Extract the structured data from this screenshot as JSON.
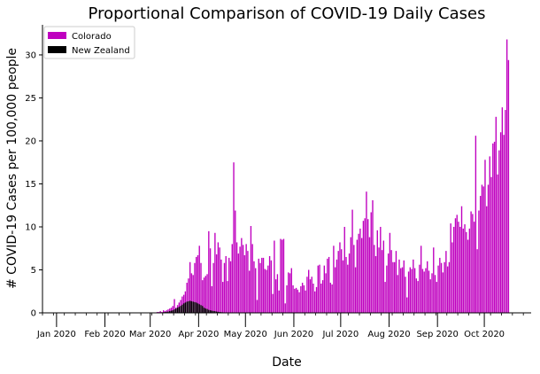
{
  "chart_data": {
    "type": "bar",
    "title": "Proportional Comparison of COVID-19 Daily Cases",
    "xlabel": "Date",
    "ylabel": "# COVID-19 Cases per 100,000 people",
    "x_range": [
      "2019-12-23",
      "2020-10-31"
    ],
    "ylim": [
      0,
      33.5
    ],
    "y_ticks": [
      0,
      5,
      10,
      15,
      20,
      25,
      30
    ],
    "x_ticks": [
      {
        "date": "2020-01-01",
        "label": "Jan 2020"
      },
      {
        "date": "2020-02-01",
        "label": "Feb 2020"
      },
      {
        "date": "2020-03-01",
        "label": "Mar 2020"
      },
      {
        "date": "2020-04-01",
        "label": "Apr 2020"
      },
      {
        "date": "2020-05-01",
        "label": "May 2020"
      },
      {
        "date": "2020-06-01",
        "label": "Jun 2020"
      },
      {
        "date": "2020-07-01",
        "label": "Jul 2020"
      },
      {
        "date": "2020-08-01",
        "label": "Aug 2020"
      },
      {
        "date": "2020-09-01",
        "label": "Sep 2020"
      },
      {
        "date": "2020-10-01",
        "label": "Oct 2020"
      }
    ],
    "grid": false,
    "legend_position": "top-left",
    "series": [
      {
        "name": "Colorado",
        "color": "#bf00bf",
        "start_date": "2020-03-05",
        "values": [
          0.1,
          0.1,
          0.2,
          0.1,
          0.3,
          0.2,
          0.3,
          0.4,
          0.5,
          0.6,
          0.8,
          1.6,
          0.6,
          0.9,
          1.2,
          1.5,
          1.9,
          2.1,
          2.5,
          3.5,
          4.0,
          5.9,
          4.6,
          4.4,
          5.8,
          6.5,
          6.7,
          7.8,
          5.8,
          3.8,
          4.1,
          4.3,
          4.5,
          9.5,
          7.5,
          3.1,
          5.8,
          9.3,
          6.8,
          8.2,
          7.6,
          6.2,
          3.6,
          5.8,
          6.6,
          3.7,
          6.4,
          6.0,
          8.0,
          17.5,
          11.9,
          8.2,
          6.9,
          7.7,
          8.7,
          7.9,
          6.7,
          8.0,
          7.2,
          4.9,
          10.1,
          8.0,
          6.0,
          5.2,
          1.5,
          6.3,
          5.8,
          6.4,
          6.4,
          5.1,
          5.0,
          5.5,
          6.6,
          6.1,
          2.2,
          8.4,
          3.9,
          4.5,
          2.6,
          8.6,
          8.5,
          8.6,
          1.1,
          3.2,
          4.7,
          4.6,
          5.2,
          3.2,
          2.8,
          2.9,
          2.7,
          2.4,
          3.1,
          3.5,
          3.2,
          2.6,
          4.2,
          5.0,
          3.9,
          4.2,
          3.4,
          2.5,
          3.0,
          5.5,
          5.6,
          3.4,
          3.8,
          5.5,
          4.6,
          6.3,
          6.5,
          3.5,
          3.3,
          7.8,
          5.3,
          6.2,
          7.2,
          8.2,
          7.4,
          6.1,
          10.0,
          6.5,
          5.6,
          6.9,
          8.8,
          12.0,
          7.9,
          5.3,
          8.5,
          9.2,
          9.8,
          8.7,
          10.7,
          11.0,
          14.1,
          10.9,
          8.8,
          11.7,
          13.1,
          7.9,
          6.6,
          9.6,
          7.6,
          10.0,
          7.3,
          8.4,
          3.6,
          5.5,
          6.9,
          9.3,
          7.3,
          5.9,
          5.9,
          7.2,
          4.4,
          6.2,
          5.2,
          5.3,
          6.1,
          4.2,
          1.8,
          4.8,
          5.3,
          5.1,
          6.2,
          5.2,
          4.0,
          3.7,
          5.6,
          7.8,
          5.1,
          4.8,
          5.2,
          6.0,
          4.9,
          3.9,
          4.6,
          7.6,
          4.4,
          3.6,
          5.5,
          6.4,
          5.8,
          4.7,
          5.9,
          7.2,
          5.4,
          5.9,
          10.4,
          8.2,
          10.0,
          11.0,
          11.4,
          10.6,
          10.0,
          12.4,
          9.8,
          10.3,
          9.4,
          8.5,
          9.8,
          11.8,
          11.5,
          10.6,
          20.6,
          7.4,
          11.9,
          13.6,
          14.9,
          14.7,
          17.8,
          12.4,
          14.9,
          18.2,
          15.8,
          19.7,
          19.9,
          22.8,
          16.1,
          18.9,
          21.0,
          23.9,
          20.7,
          23.6,
          31.8,
          29.4
        ]
      },
      {
        "name": "New Zealand",
        "color": "#000000",
        "start_date": "2020-02-28",
        "values": [
          0.02,
          0.02,
          0.03,
          0.02,
          0.03,
          0.02,
          0.05,
          0.04,
          0.06,
          0.05,
          0.07,
          0.1,
          0.12,
          0.15,
          0.2,
          0.25,
          0.3,
          0.4,
          0.5,
          0.6,
          0.7,
          0.8,
          0.95,
          1.1,
          1.2,
          1.3,
          1.35,
          1.4,
          1.35,
          1.3,
          1.25,
          1.2,
          1.1,
          1.0,
          0.9,
          0.8,
          0.6,
          0.5,
          0.45,
          0.35,
          0.3,
          0.25,
          0.22,
          0.2,
          0.15,
          0.12,
          0.1,
          0.08,
          0.06,
          0.05,
          0.05,
          0.04,
          0.03,
          0.03,
          0.02,
          0.02,
          0.02,
          0.01,
          0.01,
          0.01,
          0.01,
          0.01
        ]
      }
    ]
  }
}
